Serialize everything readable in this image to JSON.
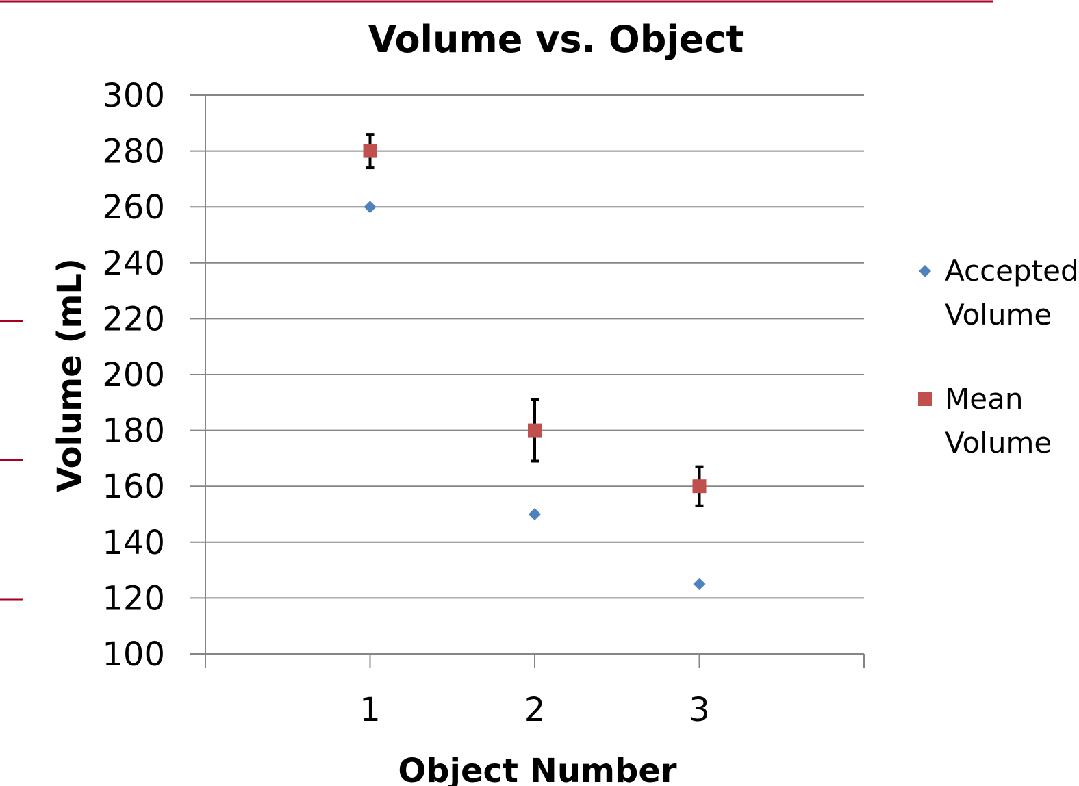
{
  "chart_data": {
    "type": "scatter",
    "title": "Volume vs. Object",
    "xlabel": "Object Number",
    "ylabel": "Volume (mL)",
    "x_ticks": [
      1,
      2,
      3
    ],
    "xlim": [
      0,
      4
    ],
    "ylim": [
      100,
      300
    ],
    "y_ticks": [
      100,
      120,
      140,
      160,
      180,
      200,
      220,
      240,
      260,
      280,
      300
    ],
    "grid": true,
    "legend_position": "right",
    "series": [
      {
        "name": "Accepted Volume",
        "name_lines": [
          "Accepted",
          "Volume"
        ],
        "marker": "diamond",
        "color": "#4F81BD",
        "points": [
          {
            "x": 1,
            "y": 260
          },
          {
            "x": 2,
            "y": 150
          },
          {
            "x": 3,
            "y": 125
          }
        ]
      },
      {
        "name": "Mean Volume",
        "name_lines": [
          "Mean",
          "Volume"
        ],
        "marker": "square",
        "color": "#C0504D",
        "points": [
          {
            "x": 1,
            "y": 280,
            "err_low": 6,
            "err_high": 6
          },
          {
            "x": 2,
            "y": 180,
            "err_low": 11,
            "err_high": 11
          },
          {
            "x": 3,
            "y": 160,
            "err_low": 7,
            "err_high": 7
          }
        ]
      }
    ]
  },
  "colors": {
    "gridline": "#868686",
    "axis": "#868686",
    "error_bar": "#000000",
    "frame_accent": "#A50021"
  }
}
